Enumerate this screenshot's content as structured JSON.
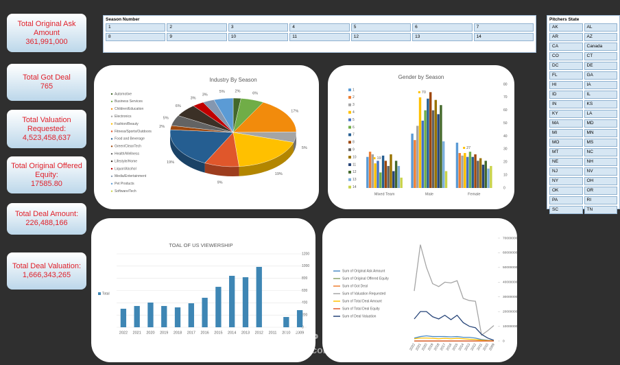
{
  "kpis": [
    {
      "label": "Total Original Ask Amount",
      "value": "361,991,000"
    },
    {
      "label": "Total Got Deal",
      "value": "765"
    },
    {
      "label": "Total Valuation Requested:",
      "value": "4,523,458,637"
    },
    {
      "label": "Total Original Offered Equity:",
      "value": "17585.80"
    },
    {
      "label": "Total Deal Amount:",
      "value": "226,488,166"
    },
    {
      "label": "Total Deal Valuation:",
      "value": "1,666,343,265"
    }
  ],
  "season_slicer": {
    "title": "Season Number",
    "items": [
      "1",
      "2",
      "3",
      "4",
      "5",
      "6",
      "7",
      "8",
      "9",
      "10",
      "11",
      "12",
      "13",
      "14"
    ]
  },
  "state_slicer": {
    "title": "Pitchers State",
    "items": [
      "AK",
      "AL",
      "AR",
      "AZ",
      "CA",
      "Canada",
      "CO",
      "CT",
      "DC",
      "DE",
      "FL",
      "GA",
      "HI",
      "IA",
      "ID",
      "IL",
      "IN",
      "KS",
      "KY",
      "LA",
      "MA",
      "MD",
      "MI",
      "MN",
      "MO",
      "MS",
      "MT",
      "NC",
      "NE",
      "NH",
      "NJ",
      "NV",
      "NY",
      "OH",
      "OK",
      "OR",
      "PA",
      "RI",
      "SC",
      "TN"
    ]
  },
  "chart_data": [
    {
      "type": "pie",
      "title": "Industry By Season",
      "categories": [
        "Automotive",
        "Business Services",
        "Children/Education",
        "Electronics",
        "Fashion/Beauty",
        "Fitness/Sports/Outdoors",
        "Food and Beverage",
        "Green/CleanTech",
        "Health/Wellness",
        "Lifestyle/Home",
        "Liquor/Alcohol",
        "Media/Entertainment",
        "Pet Products",
        "Software/Tech"
      ],
      "values": [
        2,
        6,
        17,
        5,
        19,
        9,
        19,
        2,
        5,
        6,
        3,
        3,
        5,
        null
      ],
      "value_labels": [
        "2%",
        "6%",
        "17%",
        "5%",
        "19%",
        "9%",
        "19%",
        "2%",
        "5%",
        "6%",
        "3%",
        "3%",
        "5%",
        null
      ],
      "colors": [
        "#43682b",
        "#70ad47",
        "#f28b0c",
        "#a5a5a5",
        "#ffc000",
        "#e0572b",
        "#255e91",
        "#9e480e",
        "#636363",
        "#3b3026",
        "#c00000",
        "#8497b0",
        "#5b9bd5",
        "#c9d34a"
      ]
    },
    {
      "type": "bar",
      "title": "Gender by Season",
      "categories": [
        "Mixed Team",
        "Male",
        "Female"
      ],
      "ylim": [
        0,
        80
      ],
      "yticks": [
        0,
        10,
        20,
        30,
        40,
        50,
        60,
        70,
        80
      ],
      "series": [
        {
          "name": "1",
          "color": "#5b9bd5",
          "values": [
            24,
            42,
            35
          ]
        },
        {
          "name": "2",
          "color": "#ed7d31",
          "values": [
            28,
            37,
            27
          ]
        },
        {
          "name": "3",
          "color": "#a5a5a5",
          "values": [
            26,
            48,
            25
          ]
        },
        {
          "name": "4",
          "color": "#ffc000",
          "values": [
            19,
            70,
            27
          ],
          "labels": true
        },
        {
          "name": "5",
          "color": "#4472c4",
          "values": [
            21,
            52,
            24
          ]
        },
        {
          "name": "6",
          "color": "#70ad47",
          "values": [
            12,
            60,
            28
          ]
        },
        {
          "name": "7",
          "color": "#255e91",
          "values": [
            25,
            69,
            24
          ]
        },
        {
          "name": "8",
          "color": "#9e480e",
          "values": [
            21,
            74,
            26
          ]
        },
        {
          "name": "9",
          "color": "#636363",
          "values": [
            17,
            60,
            21
          ]
        },
        {
          "name": "10",
          "color": "#997300",
          "values": [
            26,
            68,
            23
          ]
        },
        {
          "name": "11",
          "color": "#264478",
          "values": [
            13,
            57,
            18
          ]
        },
        {
          "name": "12",
          "color": "#43682b",
          "values": [
            21,
            64,
            21
          ]
        },
        {
          "name": "13",
          "color": "#7cafdd",
          "values": [
            17,
            36,
            15
          ]
        },
        {
          "name": "14",
          "color": "#c9d34a",
          "values": [
            8,
            13,
            17
          ]
        }
      ]
    },
    {
      "type": "bar",
      "title": "TOAL OF US VIEWERSHIP",
      "categories": [
        "2022",
        "2021",
        "2020",
        "2019",
        "2018",
        "2017",
        "2016",
        "2015",
        "2014",
        "2013",
        "2012",
        "2011",
        "2010",
        "2009"
      ],
      "ylim": [
        0,
        1200
      ],
      "yticks": [
        0,
        200,
        400,
        600,
        800,
        1000,
        1200
      ],
      "grid": true,
      "series": [
        {
          "name": "Total",
          "color": "#3e86b4",
          "values": [
            303,
            348,
            404,
            348,
            325,
            392,
            482,
            661,
            841,
            818,
            987,
            null,
            168,
            280
          ]
        }
      ]
    },
    {
      "type": "line",
      "categories": [
        "2022",
        "2021",
        "2020",
        "2019",
        "2018",
        "2017",
        "2016",
        "2015",
        "2014",
        "2013",
        "2012",
        "2011",
        "2010",
        "2009"
      ],
      "ylim": [
        0,
        700000000
      ],
      "yticks": [
        0,
        100000000,
        200000000,
        300000000,
        400000000,
        500000000,
        600000000,
        700000000
      ],
      "series": [
        {
          "name": "Sum of Original Ask Amount",
          "color": "#4a8bc4",
          "values": [
            20000000,
            30000000,
            35000000,
            30000000,
            30000000,
            30000000,
            28000000,
            30000000,
            25000000,
            25000000,
            20000000,
            10000000,
            5000000,
            2000000
          ]
        },
        {
          "name": "Sum of Original Offered Equity",
          "color": "#8aa36b",
          "values": [
            1200,
            1300,
            1400,
            1300,
            1250,
            1300,
            1200,
            1350,
            1250,
            1200,
            1100,
            900,
            700,
            500
          ]
        },
        {
          "name": "Sum of Got Deal",
          "color": "#ed7d31",
          "values": [
            50,
            60,
            70,
            55,
            50,
            60,
            55,
            65,
            60,
            55,
            50,
            40,
            30,
            20
          ]
        },
        {
          "name": "Sum of Valuation Requested",
          "color": "#a5a5a5",
          "values": [
            340000000,
            655000000,
            500000000,
            390000000,
            370000000,
            400000000,
            395000000,
            410000000,
            290000000,
            275000000,
            270000000,
            40000000,
            70000000,
            105000000
          ]
        },
        {
          "name": "Sum of Total Deal Amount",
          "color": "#ffc000",
          "values": [
            15000000,
            20000000,
            20000000,
            18000000,
            15000000,
            18000000,
            15000000,
            18000000,
            15000000,
            12000000,
            10000000,
            5000000,
            3000000,
            1000000
          ]
        },
        {
          "name": "Sum of Total Deal Equity",
          "color": "#e0572b",
          "values": [
            1500,
            1600,
            1700,
            1500,
            1400,
            1600,
            1500,
            1650,
            1450,
            1400,
            1300,
            1000,
            800,
            600
          ]
        },
        {
          "name": "Sum of Deal Valuation",
          "color": "#264478",
          "values": [
            150000000,
            200000000,
            200000000,
            165000000,
            150000000,
            175000000,
            145000000,
            175000000,
            125000000,
            100000000,
            90000000,
            45000000,
            20000000,
            5000000
          ]
        }
      ]
    }
  ],
  "watermark": {
    "arabic": "مستقل",
    "latin": "mostaql.com"
  }
}
